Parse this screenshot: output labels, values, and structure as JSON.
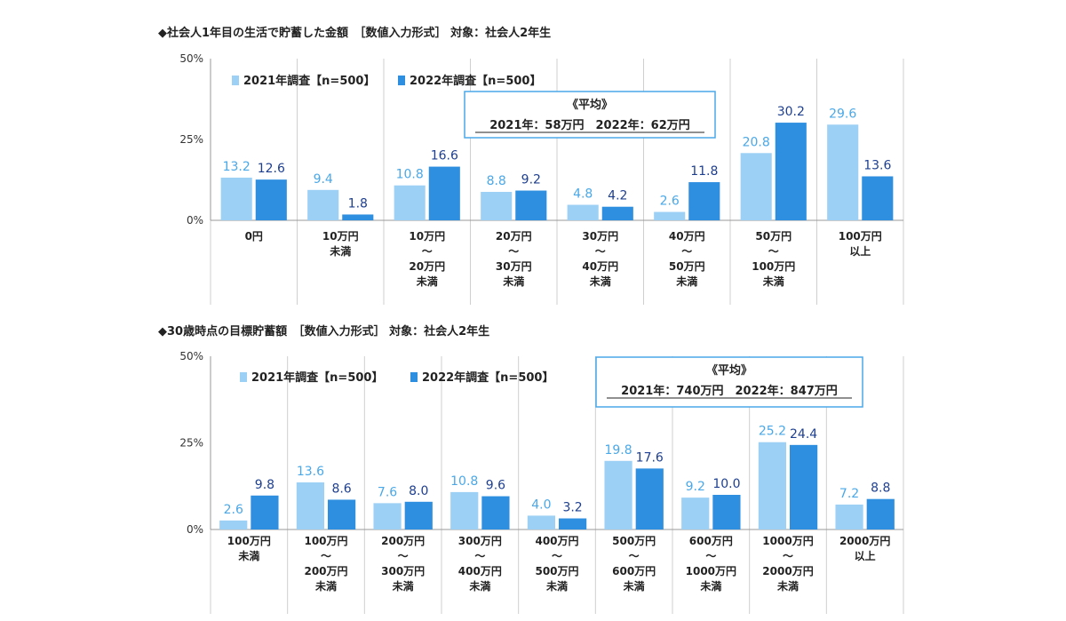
{
  "chart_data": [
    {
      "type": "bar",
      "title": "◆社会人1年目の生活で貯蓄した金額　［数値入力形式］ 対象：社会人2年生",
      "categories": [
        [
          "0円"
        ],
        [
          "10万円",
          "未満"
        ],
        [
          "10万円",
          "～",
          "20万円",
          "未満"
        ],
        [
          "20万円",
          "～",
          "30万円",
          "未満"
        ],
        [
          "30万円",
          "～",
          "40万円",
          "未満"
        ],
        [
          "40万円",
          "～",
          "50万円",
          "未満"
        ],
        [
          "50万円",
          "～",
          "100万円",
          "未満"
        ],
        [
          "100万円",
          "以上"
        ]
      ],
      "series": [
        {
          "name": "2021年調査【n=500】",
          "values": [
            13.2,
            9.4,
            10.8,
            8.8,
            4.8,
            2.6,
            20.8,
            29.6
          ]
        },
        {
          "name": "2022年調査【n=500】",
          "values": [
            12.6,
            1.8,
            16.6,
            9.2,
            4.2,
            11.8,
            30.2,
            13.6
          ]
        }
      ],
      "ylim": [
        0,
        50
      ],
      "yticks": [
        "50%",
        "25%",
        "0%"
      ],
      "grid": "vertical category separators",
      "legend": "top-left",
      "note": {
        "title": "《平均》",
        "text": "2021年：58万円　2022年：62万円"
      }
    },
    {
      "type": "bar",
      "title": "◆30歳時点の目標貯蓄額　［数値入力形式］ 対象：社会人2年生",
      "categories": [
        [
          "100万円",
          "未満"
        ],
        [
          "100万円",
          "～",
          "200万円",
          "未満"
        ],
        [
          "200万円",
          "～",
          "300万円",
          "未満"
        ],
        [
          "300万円",
          "～",
          "400万円",
          "未満"
        ],
        [
          "400万円",
          "～",
          "500万円",
          "未満"
        ],
        [
          "500万円",
          "～",
          "600万円",
          "未満"
        ],
        [
          "600万円",
          "～",
          "1000万円",
          "未満"
        ],
        [
          "1000万円",
          "～",
          "2000万円",
          "未満"
        ],
        [
          "2000万円",
          "以上"
        ]
      ],
      "series": [
        {
          "name": "2021年調査【n=500】",
          "values": [
            2.6,
            13.6,
            7.6,
            10.8,
            4.0,
            19.8,
            9.2,
            25.2,
            7.2
          ]
        },
        {
          "name": "2022年調査【n=500】",
          "values": [
            9.8,
            8.6,
            8.0,
            9.6,
            3.2,
            17.6,
            10.0,
            24.4,
            8.8
          ]
        }
      ],
      "ylim": [
        0,
        50
      ],
      "yticks": [
        "50%",
        "25%",
        "0%"
      ],
      "grid": "vertical category separators",
      "legend": "top-left",
      "note": {
        "title": "《平均》",
        "text": "2021年：740万円　2022年：847万円"
      }
    }
  ],
  "colors": {
    "series_2021": "#9dd0f5",
    "series_2022": "#2e8fe0",
    "label_2021": "#4aa8e8",
    "label_2022": "#1e3f8f",
    "axis": "#999999",
    "note_border": "#4aa8e8"
  }
}
